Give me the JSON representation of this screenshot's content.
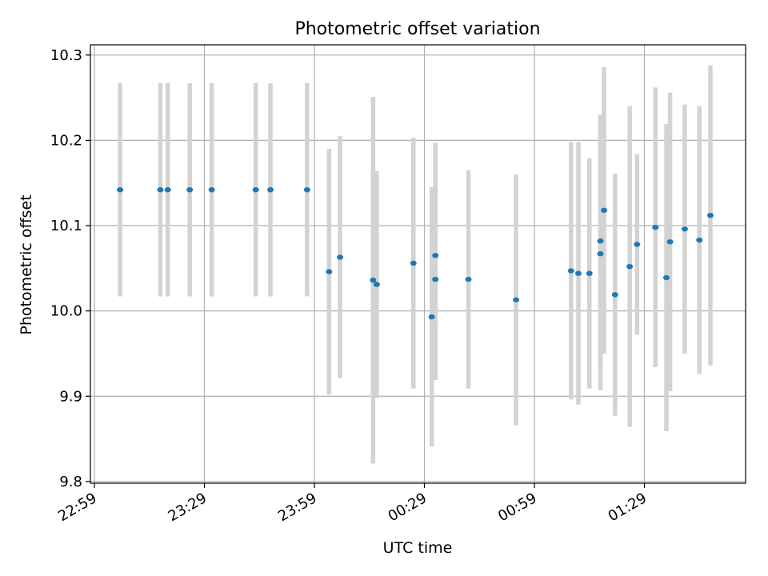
{
  "chart_data": {
    "type": "scatter",
    "title": "Photometric offset variation",
    "xlabel": "UTC time",
    "ylabel": "Photometric offset",
    "x_tick_labels": [
      "22:59",
      "23:29",
      "23:59",
      "00:29",
      "00:59",
      "01:29"
    ],
    "y_tick_labels": [
      "9.8",
      "9.9",
      "10.0",
      "10.1",
      "10.2",
      "10.3"
    ],
    "y_ticks": [
      9.8,
      9.9,
      10.0,
      10.1,
      10.2,
      10.3
    ],
    "ylim": [
      9.798,
      10.312
    ],
    "grid": true,
    "series": [
      {
        "points": [
          {
            "x": "23:06",
            "y": 10.142,
            "err": 0.125
          },
          {
            "x": "23:17",
            "y": 10.142,
            "err": 0.125
          },
          {
            "x": "23:19",
            "y": 10.142,
            "err": 0.125
          },
          {
            "x": "23:25",
            "y": 10.142,
            "err": 0.125
          },
          {
            "x": "23:31",
            "y": 10.142,
            "err": 0.125
          },
          {
            "x": "23:43",
            "y": 10.142,
            "err": 0.125
          },
          {
            "x": "23:47",
            "y": 10.142,
            "err": 0.125
          },
          {
            "x": "23:57",
            "y": 10.142,
            "err": 0.125
          },
          {
            "x": "00:03",
            "y": 10.046,
            "err": 0.144
          },
          {
            "x": "00:06",
            "y": 10.063,
            "err": 0.142
          },
          {
            "x": "00:15",
            "y": 10.036,
            "err": 0.215
          },
          {
            "x": "00:16",
            "y": 10.031,
            "err": 0.133
          },
          {
            "x": "00:26",
            "y": 10.056,
            "err": 0.147
          },
          {
            "x": "00:31",
            "y": 9.993,
            "err": 0.152
          },
          {
            "x": "00:32",
            "y": 10.065,
            "err": 0.132
          },
          {
            "x": "00:32",
            "y": 10.037,
            "err": 0.118
          },
          {
            "x": "00:41",
            "y": 10.037,
            "err": 0.128
          },
          {
            "x": "00:54",
            "y": 10.013,
            "err": 0.147
          },
          {
            "x": "01:09",
            "y": 10.047,
            "err": 0.151
          },
          {
            "x": "01:11",
            "y": 10.044,
            "err": 0.154
          },
          {
            "x": "01:14",
            "y": 10.044,
            "err": 0.135
          },
          {
            "x": "01:17",
            "y": 10.067,
            "err": 0.16
          },
          {
            "x": "01:17",
            "y": 10.082,
            "err": 0.148
          },
          {
            "x": "01:18",
            "y": 10.118,
            "err": 0.168
          },
          {
            "x": "01:21",
            "y": 10.019,
            "err": 0.142
          },
          {
            "x": "01:25",
            "y": 10.052,
            "err": 0.188
          },
          {
            "x": "01:27",
            "y": 10.078,
            "err": 0.106
          },
          {
            "x": "01:32",
            "y": 10.098,
            "err": 0.164
          },
          {
            "x": "01:35",
            "y": 10.039,
            "err": 0.18
          },
          {
            "x": "01:36",
            "y": 10.081,
            "err": 0.175
          },
          {
            "x": "01:40",
            "y": 10.096,
            "err": 0.146
          },
          {
            "x": "01:44",
            "y": 10.083,
            "err": 0.157
          },
          {
            "x": "01:47",
            "y": 10.112,
            "err": 0.176
          }
        ]
      }
    ],
    "colors": {
      "marker": "#1f77b4",
      "errorbar": "#d3d3d3",
      "grid": "#b0b0b0",
      "axes": "#000000"
    }
  }
}
